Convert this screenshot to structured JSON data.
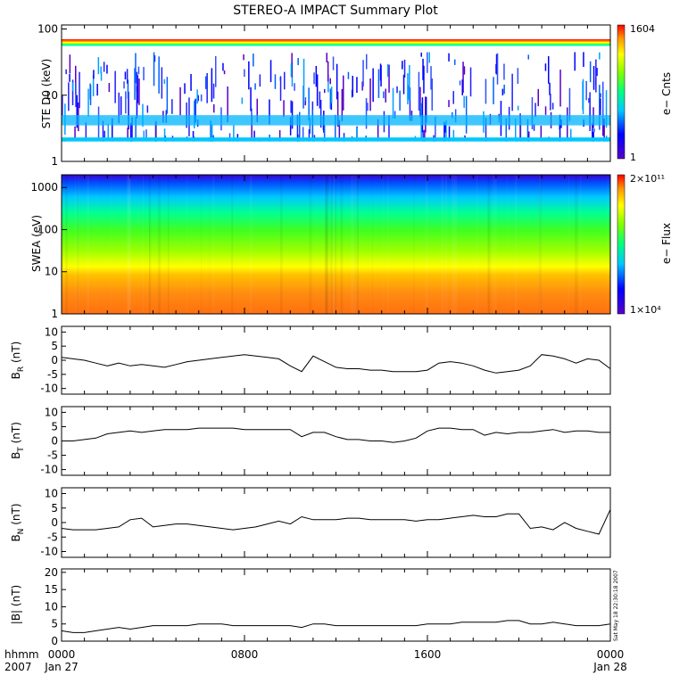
{
  "title": "STEREO-A IMPACT Summary Plot",
  "timestamp_stamp": "Sat May 18 22:30:18 2007",
  "time_axis": {
    "format_label": "hhmm",
    "year_label": "2007",
    "ticks": [
      {
        "hour": 0,
        "label": "0000",
        "date": "Jan 27"
      },
      {
        "hour": 8,
        "label": "0800",
        "date": ""
      },
      {
        "hour": 16,
        "label": "1600",
        "date": ""
      },
      {
        "hour": 24,
        "label": "0000",
        "date": "Jan 28"
      }
    ]
  },
  "panels": {
    "ste": {
      "ylabel": "STE D0 (keV)",
      "yticks": [
        "1",
        "10",
        "100"
      ],
      "colorbar": {
        "label": "e− Cnts",
        "max": "1604",
        "min": "1"
      }
    },
    "swea": {
      "ylabel": "SWEA (eV)",
      "yticks": [
        "1",
        "10",
        "100",
        "1000"
      ],
      "colorbar": {
        "label": "e− Flux",
        "max": "2×10¹¹",
        "min": "1×10⁴"
      }
    },
    "br": {
      "ylabel": "B",
      "sub": "R",
      "unit": " (nT)",
      "yticks": [
        "10",
        "5",
        "0",
        "-5",
        "-10"
      ]
    },
    "bt": {
      "ylabel": "B",
      "sub": "T",
      "unit": " (nT)",
      "yticks": [
        "10",
        "5",
        "0",
        "-5",
        "-10"
      ]
    },
    "bn": {
      "ylabel": "B",
      "sub": "N",
      "unit": " (nT)",
      "yticks": [
        "10",
        "5",
        "0",
        "-5",
        "-10"
      ]
    },
    "bmag": {
      "ylabel": "|B| (nT)",
      "yticks": [
        "20",
        "15",
        "10",
        "5",
        "0"
      ]
    }
  },
  "colors": {
    "line": "#000000"
  },
  "chart_data": [
    {
      "type": "heatmap",
      "name": "STE D0",
      "ylabel": "STE D0 (keV)",
      "yscale": "log",
      "ylim": [
        1,
        100
      ],
      "xlim_hours": [
        0,
        24
      ],
      "features": [
        {
          "energy_range_keV": [
            60,
            68
          ],
          "counts": "~1604 (max)"
        },
        {
          "energy_range_keV": [
            3.5,
            5
          ],
          "counts": "moderate"
        },
        {
          "energy_range_keV": [
            2,
            30
          ],
          "counts": "low, patchy"
        }
      ],
      "colorbar": {
        "label": "e− Cnts",
        "min": 1,
        "max": 1604
      }
    },
    {
      "type": "heatmap",
      "name": "SWEA",
      "ylabel": "SWEA (eV)",
      "yscale": "log",
      "ylim": [
        1,
        2000
      ],
      "xlim_hours": [
        0,
        24
      ],
      "colorbar": {
        "label": "e− Flux",
        "min": 10000.0,
        "max": 200000000000.0
      }
    },
    {
      "type": "line",
      "name": "BR",
      "ylabel": "BR (nT)",
      "ylim": [
        -12,
        12
      ],
      "x": [
        0,
        0.5,
        1,
        1.5,
        2,
        2.5,
        3,
        3.5,
        4,
        4.5,
        5,
        5.5,
        6,
        6.5,
        7,
        7.5,
        8,
        8.5,
        9,
        9.5,
        10,
        10.5,
        11,
        11.5,
        12,
        12.5,
        13,
        13.5,
        14,
        14.5,
        15,
        15.5,
        16,
        16.5,
        17,
        17.5,
        18,
        18.5,
        19,
        19.5,
        20,
        20.5,
        21,
        21.5,
        22,
        22.5,
        23,
        23.5,
        24
      ],
      "y": [
        1,
        0.5,
        0,
        -1,
        -2,
        -1,
        -2,
        -1.5,
        -2,
        -2.5,
        -1.5,
        -0.5,
        0,
        0.5,
        1,
        1.5,
        2,
        1.5,
        1,
        0.5,
        -2,
        -4,
        1.5,
        -0.5,
        -2.5,
        -3,
        -3,
        -3.5,
        -3.5,
        -4,
        -4,
        -4,
        -3.5,
        -1,
        -0.5,
        -1,
        -2,
        -3.5,
        -4.5,
        -4,
        -3.5,
        -2,
        2,
        1.5,
        0.5,
        -1,
        0.5,
        0,
        -3
      ]
    },
    {
      "type": "line",
      "name": "BT",
      "ylabel": "BT (nT)",
      "ylim": [
        -12,
        12
      ],
      "x": [
        0,
        0.5,
        1,
        1.5,
        2,
        2.5,
        3,
        3.5,
        4,
        4.5,
        5,
        5.5,
        6,
        6.5,
        7,
        7.5,
        8,
        8.5,
        9,
        9.5,
        10,
        10.5,
        11,
        11.5,
        12,
        12.5,
        13,
        13.5,
        14,
        14.5,
        15,
        15.5,
        16,
        16.5,
        17,
        17.5,
        18,
        18.5,
        19,
        19.5,
        20,
        20.5,
        21,
        21.5,
        22,
        22.5,
        23,
        23.5,
        24
      ],
      "y": [
        0,
        0,
        0.5,
        1,
        2.5,
        3,
        3.5,
        3,
        3.5,
        4,
        4,
        4,
        4.5,
        4.5,
        4.5,
        4.5,
        4,
        4,
        4,
        4,
        4,
        1.5,
        3,
        3,
        1.5,
        0.5,
        0.5,
        0,
        0,
        -0.5,
        0,
        1,
        3.5,
        4.5,
        4.5,
        4,
        4,
        2,
        3,
        2.5,
        3,
        3,
        3.5,
        4,
        3,
        3.5,
        3.5,
        3,
        3
      ]
    },
    {
      "type": "line",
      "name": "BN",
      "ylabel": "BN (nT)",
      "ylim": [
        -12,
        12
      ],
      "x": [
        0,
        0.5,
        1,
        1.5,
        2,
        2.5,
        3,
        3.5,
        4,
        4.5,
        5,
        5.5,
        6,
        6.5,
        7,
        7.5,
        8,
        8.5,
        9,
        9.5,
        10,
        10.5,
        11,
        11.5,
        12,
        12.5,
        13,
        13.5,
        14,
        14.5,
        15,
        15.5,
        16,
        16.5,
        17,
        17.5,
        18,
        18.5,
        19,
        19.5,
        20,
        20.5,
        21,
        21.5,
        22,
        22.5,
        23,
        23.5,
        24
      ],
      "y": [
        -2,
        -2.5,
        -2.5,
        -2.5,
        -2,
        -1.5,
        1,
        1.5,
        -1.5,
        -1,
        -0.5,
        -0.5,
        -1,
        -1.5,
        -2,
        -2.5,
        -2,
        -1.5,
        -0.5,
        0.5,
        -0.5,
        2,
        1,
        1,
        1,
        1.5,
        1.5,
        1,
        1,
        1,
        1,
        0.5,
        1,
        1,
        1.5,
        2,
        2.5,
        2,
        2,
        3,
        3,
        -2,
        -1.5,
        -2.5,
        0,
        -2,
        -3,
        -4,
        4.5
      ]
    },
    {
      "type": "line",
      "name": "|B|",
      "ylabel": "|B| (nT)",
      "ylim": [
        0,
        21
      ],
      "x": [
        0,
        0.5,
        1,
        1.5,
        2,
        2.5,
        3,
        3.5,
        4,
        4.5,
        5,
        5.5,
        6,
        6.5,
        7,
        7.5,
        8,
        8.5,
        9,
        9.5,
        10,
        10.5,
        11,
        11.5,
        12,
        12.5,
        13,
        13.5,
        14,
        14.5,
        15,
        15.5,
        16,
        16.5,
        17,
        17.5,
        18,
        18.5,
        19,
        19.5,
        20,
        20.5,
        21,
        21.5,
        22,
        22.5,
        23,
        23.5,
        24
      ],
      "y": [
        3,
        2.5,
        2.5,
        3,
        3.5,
        4,
        3.5,
        4,
        4.5,
        4.5,
        4.5,
        4.5,
        5,
        5,
        5,
        4.5,
        4.5,
        4.5,
        4.5,
        4.5,
        4.5,
        4,
        5,
        5,
        4.5,
        4.5,
        4.5,
        4.5,
        4.5,
        4.5,
        4.5,
        4.5,
        5,
        5,
        5,
        5.5,
        5.5,
        5.5,
        5.5,
        6,
        6,
        5,
        5,
        5.5,
        5,
        4.5,
        4.5,
        4.5,
        5
      ]
    }
  ]
}
